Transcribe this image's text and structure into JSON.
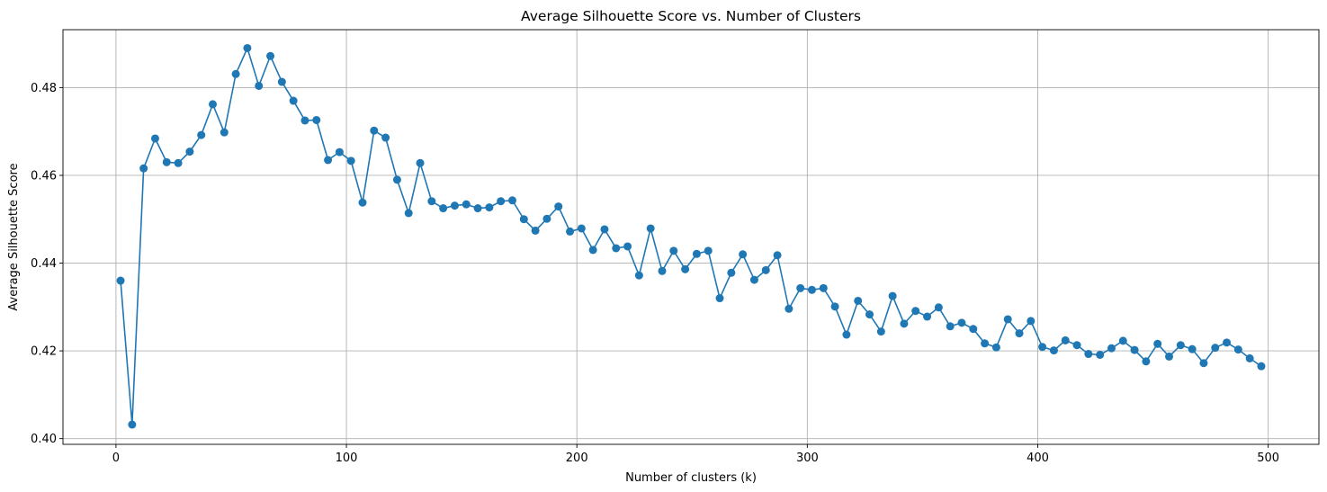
{
  "chart_data": {
    "type": "line",
    "title": "Average Silhouette Score vs. Number of Clusters",
    "xlabel": "Number of clusters (k)",
    "ylabel": "Average Silhouette Score",
    "xlim": [
      -23,
      522
    ],
    "ylim": [
      0.3987,
      0.4932
    ],
    "xticks": [
      0,
      100,
      200,
      300,
      400,
      500
    ],
    "xtick_labels": [
      "0",
      "100",
      "200",
      "300",
      "400",
      "500"
    ],
    "yticks": [
      0.4,
      0.42,
      0.44,
      0.46,
      0.48
    ],
    "ytick_labels": [
      "0.40",
      "0.42",
      "0.44",
      "0.46",
      "0.48"
    ],
    "grid": true,
    "marker": "circle",
    "color": "#1f77b4",
    "series": [
      {
        "x": [
          2,
          7,
          12,
          17,
          22,
          27,
          32,
          37,
          42,
          47,
          52,
          57,
          62,
          67,
          72,
          77,
          82,
          87,
          92,
          97,
          102,
          107,
          112,
          117,
          122,
          127,
          132,
          137,
          142,
          147,
          152,
          157,
          162,
          167,
          172,
          177,
          182,
          187,
          192,
          197,
          202,
          207,
          212,
          217,
          222,
          227,
          232,
          237,
          242,
          247,
          252,
          257,
          262,
          267,
          272,
          277,
          282,
          287,
          292,
          297,
          302,
          307,
          312,
          317,
          322,
          327,
          332,
          337,
          342,
          347,
          352,
          357,
          362,
          367,
          372,
          377,
          382,
          387,
          392,
          397,
          402,
          407,
          412,
          417,
          422,
          427,
          432,
          437,
          442,
          447,
          452,
          457,
          462,
          467,
          472,
          477,
          482,
          487,
          492,
          497
        ],
        "values": [
          0.436,
          0.4032,
          0.4616,
          0.4684,
          0.463,
          0.4628,
          0.4654,
          0.4692,
          0.4762,
          0.4698,
          0.4831,
          0.489,
          0.4804,
          0.4872,
          0.4813,
          0.477,
          0.4725,
          0.4726,
          0.4635,
          0.4653,
          0.4633,
          0.4538,
          0.4702,
          0.4686,
          0.459,
          0.4514,
          0.4628,
          0.4541,
          0.4525,
          0.4531,
          0.4534,
          0.4525,
          0.4527,
          0.4541,
          0.4543,
          0.45,
          0.4474,
          0.4501,
          0.4529,
          0.4472,
          0.4479,
          0.443,
          0.4477,
          0.4434,
          0.4438,
          0.4372,
          0.4479,
          0.4382,
          0.4428,
          0.4386,
          0.4421,
          0.4428,
          0.432,
          0.4378,
          0.442,
          0.4362,
          0.4384,
          0.4418,
          0.4296,
          0.4343,
          0.4339,
          0.4343,
          0.4301,
          0.4237,
          0.4314,
          0.4283,
          0.4244,
          0.4325,
          0.4262,
          0.4291,
          0.4278,
          0.4299,
          0.4256,
          0.4264,
          0.425,
          0.4217,
          0.4208,
          0.4272,
          0.424,
          0.4268,
          0.4209,
          0.4201,
          0.4224,
          0.4213,
          0.4193,
          0.4191,
          0.4206,
          0.4223,
          0.4202,
          0.4176,
          0.4216,
          0.4187,
          0.4213,
          0.4204,
          0.4172,
          0.4207,
          0.4219,
          0.4203,
          0.4183,
          0.4165
        ]
      }
    ]
  }
}
